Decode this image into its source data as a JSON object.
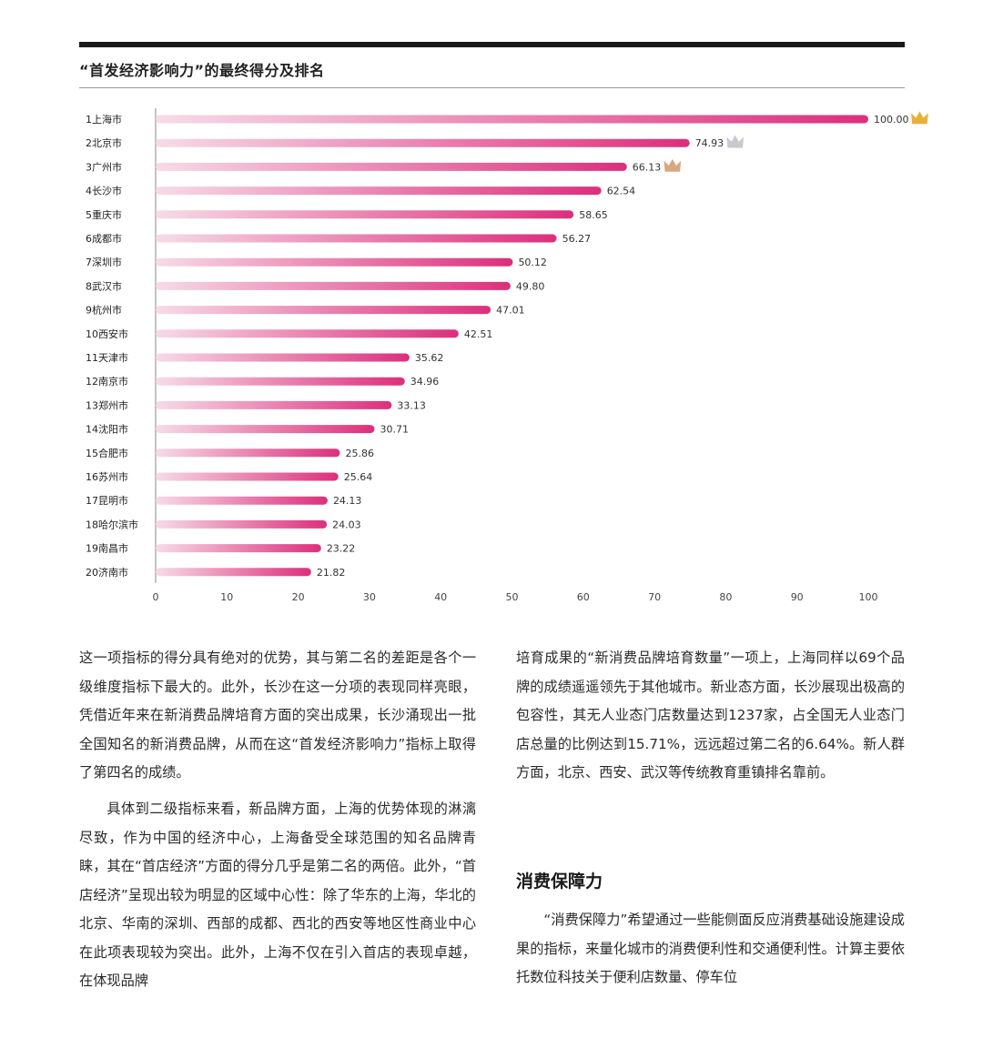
{
  "chart_data": {
    "type": "bar",
    "orientation": "horizontal",
    "title": "“首发经济影响力”的最终得分及排名",
    "categories": [
      "1上海市",
      "2北京市",
      "3广州市",
      "4长沙市",
      "5重庆市",
      "6成都市",
      "7深圳市",
      "8武汉市",
      "9杭州市",
      "10西安市",
      "11天津市",
      "12南京市",
      "13郑州市",
      "14沈阳市",
      "15合肥市",
      "16苏州市",
      "17昆明市",
      "18哈尔滨市",
      "19南昌市",
      "20济南市"
    ],
    "values": [
      100.0,
      74.93,
      66.13,
      62.54,
      58.65,
      56.27,
      50.12,
      49.8,
      47.01,
      42.51,
      35.62,
      34.96,
      33.13,
      30.71,
      25.86,
      25.64,
      24.13,
      24.03,
      23.22,
      21.82
    ],
    "value_labels": [
      "100.00",
      "74.93",
      "66.13",
      "62.54",
      "58.65",
      "56.27",
      "50.12",
      "49.80",
      "47.01",
      "42.51",
      "35.62",
      "34.96",
      "33.13",
      "30.71",
      "25.86",
      "25.64",
      "24.13",
      "24.03",
      "23.22",
      "21.82"
    ],
    "x_ticks": [
      "0",
      "10",
      "20",
      "30",
      "40",
      "50",
      "60",
      "70",
      "80",
      "90",
      "100"
    ],
    "xlim": [
      0,
      100
    ],
    "bar_gradient": [
      "#f7dbe7",
      "#dc2f7c"
    ],
    "crowns": [
      {
        "rank": 1,
        "color": "#e8b23a",
        "icon": "gold-crown-icon"
      },
      {
        "rank": 2,
        "color": "#c9c9cf",
        "icon": "silver-crown-icon"
      },
      {
        "rank": 3,
        "color": "#d9a77e",
        "icon": "bronze-crown-icon"
      }
    ],
    "grid": false
  },
  "left_column": {
    "p1": "这一项指标的得分具有绝对的优势，其与第二名的差距是各个一级维度指标下最大的。此外，长沙在这一分项的表现同样亮眼，凭借近年来在新消费品牌培育方面的突出成果，长沙涌现出一批全国知名的新消费品牌，从而在这“首发经济影响力”指标上取得了第四名的成绩。",
    "p2": "具体到二级指标来看，新品牌方面，上海的优势体现的淋漓尽致，作为中国的经济中心，上海备受全球范围的知名品牌青睐，其在“首店经济”方面的得分几乎是第二名的两倍。此外，“首店经济”呈现出较为明显的区域中心性：除了华东的上海，华北的北京、华南的深圳、西部的成都、西北的西安等地区性商业中心在此项表现较为突出。此外，上海不仅在引入首店的表现卓越，在体现品牌"
  },
  "right_column": {
    "p1": "培育成果的“新消费品牌培育数量”一项上，上海同样以69个品牌的成绩遥遥领先于其他城市。新业态方面，长沙展现出极高的包容性，其无人业态门店数量达到1237家，占全国无人业态门店总量的比例达到15.71%，远远超过第二名的6.64%。新人群方面，北京、西安、武汉等传统教育重镇排名靠前。",
    "heading": "消费保障力",
    "p2": "“消费保障力”希望通过一些能侧面反应消费基础设施建设成果的指标，来量化城市的消费便利性和交通便利性。计算主要依托数位科技关于便利店数量、停车位"
  }
}
